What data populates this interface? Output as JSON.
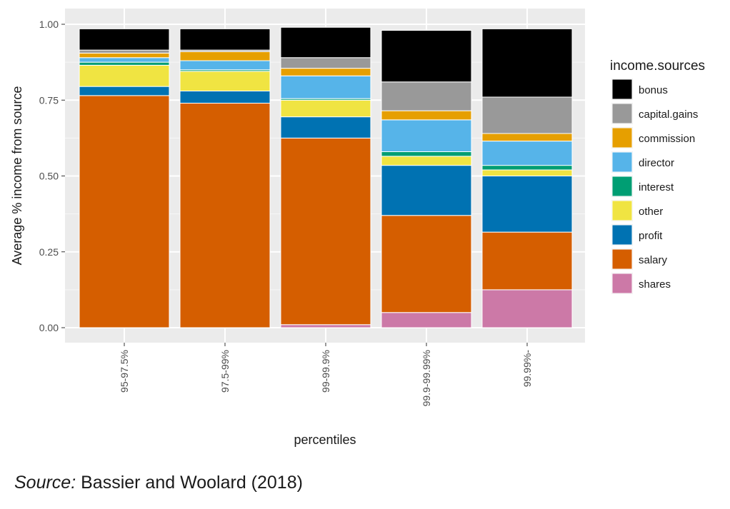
{
  "chart_data": {
    "type": "bar",
    "stacked": true,
    "xlabel": "percentiles",
    "ylabel": "Average % income from source",
    "ylim": [
      0,
      1
    ],
    "yticks": [
      "0.00",
      "0.25",
      "0.50",
      "0.75",
      "1.00"
    ],
    "categories": [
      "95-97.5%",
      "97.5-99%",
      "99-99.9%",
      "99.9-99.99%",
      "99.99%-"
    ],
    "legend_title": "income.sources",
    "legend_position": "right",
    "background": "#ebebeb",
    "grid": true,
    "series": [
      {
        "name": "shares",
        "color": "#cc79a7",
        "values": [
          0.0,
          0.0,
          0.01,
          0.05,
          0.125
        ]
      },
      {
        "name": "salary",
        "color": "#d55e00",
        "values": [
          0.765,
          0.74,
          0.615,
          0.32,
          0.19
        ]
      },
      {
        "name": "profit",
        "color": "#0072b2",
        "values": [
          0.03,
          0.04,
          0.07,
          0.165,
          0.185
        ]
      },
      {
        "name": "other",
        "color": "#f0e442",
        "values": [
          0.07,
          0.065,
          0.055,
          0.03,
          0.02
        ]
      },
      {
        "name": "interest",
        "color": "#009e73",
        "values": [
          0.01,
          0.005,
          0.005,
          0.015,
          0.015
        ]
      },
      {
        "name": "director",
        "color": "#56b4e9",
        "values": [
          0.015,
          0.03,
          0.075,
          0.105,
          0.08
        ]
      },
      {
        "name": "commission",
        "color": "#e69f00",
        "values": [
          0.015,
          0.03,
          0.025,
          0.03,
          0.025
        ]
      },
      {
        "name": "capital.gains",
        "color": "#999999",
        "values": [
          0.01,
          0.005,
          0.035,
          0.095,
          0.12
        ]
      },
      {
        "name": "bonus",
        "color": "#000000",
        "values": [
          0.07,
          0.07,
          0.1,
          0.17,
          0.225
        ]
      }
    ],
    "legend_order": [
      "bonus",
      "capital.gains",
      "commission",
      "director",
      "interest",
      "other",
      "profit",
      "salary",
      "shares"
    ]
  },
  "caption": {
    "source_label": "Source:",
    "source_text": " Bassier and Woolard (2018)"
  }
}
